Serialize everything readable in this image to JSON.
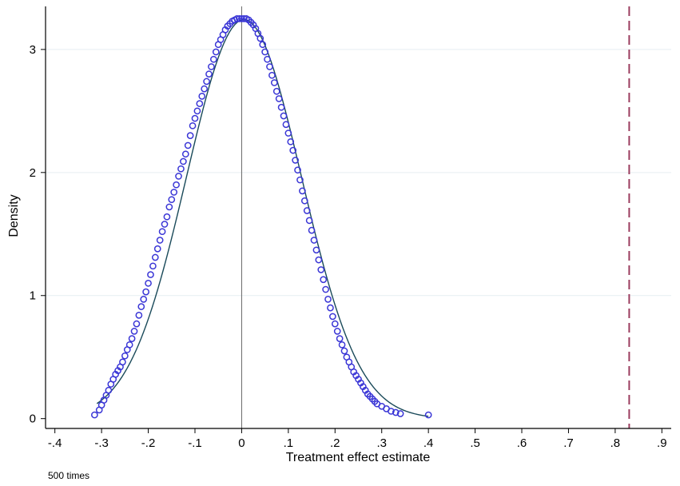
{
  "chart_data": {
    "type": "scatter",
    "title": "",
    "xlabel": "Treatment effect estimate",
    "ylabel": "Density",
    "note": "500 times",
    "xlim": [
      -0.42,
      0.92
    ],
    "ylim": [
      -0.08,
      3.35
    ],
    "x_ticks": [
      -0.4,
      -0.3,
      -0.2,
      -0.1,
      0,
      0.1,
      0.2,
      0.3,
      0.4,
      0.5,
      0.6,
      0.7,
      0.8,
      0.9
    ],
    "x_tick_labels": [
      "-.4",
      "-.3",
      "-.2",
      "-.1",
      "0",
      ".1",
      ".2",
      ".3",
      ".4",
      ".5",
      ".6",
      ".7",
      ".8",
      ".9"
    ],
    "y_ticks": [
      0,
      1,
      2,
      3
    ],
    "y_tick_labels": [
      "0",
      "1",
      "2",
      "3"
    ],
    "grid": "horizontal",
    "reference_lines": [
      {
        "x": 0,
        "style": "solid",
        "color": "#666666"
      },
      {
        "x": 0.83,
        "style": "dashed",
        "color": "#9b3d5f"
      }
    ],
    "normal_curve": {
      "mean": 0.005,
      "sd": 0.123,
      "x_range": [
        -0.31,
        0.4
      ],
      "color": "#1a4a5a"
    },
    "series": [
      {
        "marker": "hollow-circle",
        "color": "#3a36d6",
        "points": [
          [
            -0.315,
            0.03
          ],
          [
            -0.305,
            0.07
          ],
          [
            -0.3,
            0.11
          ],
          [
            -0.295,
            0.15
          ],
          [
            -0.29,
            0.19
          ],
          [
            -0.285,
            0.23
          ],
          [
            -0.28,
            0.28
          ],
          [
            -0.275,
            0.32
          ],
          [
            -0.27,
            0.36
          ],
          [
            -0.265,
            0.39
          ],
          [
            -0.26,
            0.42
          ],
          [
            -0.255,
            0.46
          ],
          [
            -0.25,
            0.51
          ],
          [
            -0.245,
            0.56
          ],
          [
            -0.24,
            0.6
          ],
          [
            -0.235,
            0.65
          ],
          [
            -0.23,
            0.71
          ],
          [
            -0.225,
            0.77
          ],
          [
            -0.22,
            0.84
          ],
          [
            -0.215,
            0.91
          ],
          [
            -0.21,
            0.97
          ],
          [
            -0.205,
            1.03
          ],
          [
            -0.2,
            1.1
          ],
          [
            -0.195,
            1.17
          ],
          [
            -0.19,
            1.24
          ],
          [
            -0.185,
            1.31
          ],
          [
            -0.18,
            1.38
          ],
          [
            -0.175,
            1.45
          ],
          [
            -0.17,
            1.52
          ],
          [
            -0.165,
            1.58
          ],
          [
            -0.16,
            1.64
          ],
          [
            -0.155,
            1.72
          ],
          [
            -0.15,
            1.78
          ],
          [
            -0.145,
            1.84
          ],
          [
            -0.14,
            1.9
          ],
          [
            -0.135,
            1.97
          ],
          [
            -0.13,
            2.03
          ],
          [
            -0.125,
            2.09
          ],
          [
            -0.12,
            2.15
          ],
          [
            -0.115,
            2.22
          ],
          [
            -0.11,
            2.3
          ],
          [
            -0.105,
            2.38
          ],
          [
            -0.1,
            2.44
          ],
          [
            -0.095,
            2.5
          ],
          [
            -0.09,
            2.56
          ],
          [
            -0.085,
            2.62
          ],
          [
            -0.08,
            2.68
          ],
          [
            -0.075,
            2.74
          ],
          [
            -0.07,
            2.8
          ],
          [
            -0.065,
            2.86
          ],
          [
            -0.06,
            2.92
          ],
          [
            -0.055,
            2.98
          ],
          [
            -0.05,
            3.04
          ],
          [
            -0.045,
            3.08
          ],
          [
            -0.04,
            3.12
          ],
          [
            -0.035,
            3.16
          ],
          [
            -0.03,
            3.19
          ],
          [
            -0.025,
            3.21
          ],
          [
            -0.02,
            3.23
          ],
          [
            -0.015,
            3.24
          ],
          [
            -0.01,
            3.25
          ],
          [
            -0.005,
            3.25
          ],
          [
            0.0,
            3.25
          ],
          [
            0.005,
            3.25
          ],
          [
            0.01,
            3.25
          ],
          [
            0.015,
            3.24
          ],
          [
            0.02,
            3.22
          ],
          [
            0.025,
            3.2
          ],
          [
            0.03,
            3.17
          ],
          [
            0.035,
            3.13
          ],
          [
            0.04,
            3.09
          ],
          [
            0.045,
            3.04
          ],
          [
            0.05,
            2.98
          ],
          [
            0.055,
            2.92
          ],
          [
            0.06,
            2.86
          ],
          [
            0.065,
            2.79
          ],
          [
            0.07,
            2.73
          ],
          [
            0.075,
            2.66
          ],
          [
            0.08,
            2.6
          ],
          [
            0.085,
            2.53
          ],
          [
            0.09,
            2.46
          ],
          [
            0.095,
            2.39
          ],
          [
            0.1,
            2.32
          ],
          [
            0.105,
            2.25
          ],
          [
            0.11,
            2.18
          ],
          [
            0.115,
            2.1
          ],
          [
            0.12,
            2.02
          ],
          [
            0.125,
            1.94
          ],
          [
            0.13,
            1.85
          ],
          [
            0.135,
            1.77
          ],
          [
            0.14,
            1.69
          ],
          [
            0.145,
            1.61
          ],
          [
            0.15,
            1.53
          ],
          [
            0.155,
            1.45
          ],
          [
            0.16,
            1.37
          ],
          [
            0.165,
            1.29
          ],
          [
            0.17,
            1.21
          ],
          [
            0.175,
            1.13
          ],
          [
            0.18,
            1.05
          ],
          [
            0.185,
            0.97
          ],
          [
            0.19,
            0.9
          ],
          [
            0.195,
            0.83
          ],
          [
            0.2,
            0.77
          ],
          [
            0.205,
            0.71
          ],
          [
            0.21,
            0.65
          ],
          [
            0.215,
            0.6
          ],
          [
            0.22,
            0.55
          ],
          [
            0.225,
            0.5
          ],
          [
            0.23,
            0.46
          ],
          [
            0.235,
            0.42
          ],
          [
            0.24,
            0.38
          ],
          [
            0.245,
            0.35
          ],
          [
            0.25,
            0.32
          ],
          [
            0.255,
            0.29
          ],
          [
            0.26,
            0.26
          ],
          [
            0.265,
            0.23
          ],
          [
            0.27,
            0.2
          ],
          [
            0.275,
            0.18
          ],
          [
            0.28,
            0.16
          ],
          [
            0.285,
            0.14
          ],
          [
            0.29,
            0.12
          ],
          [
            0.3,
            0.1
          ],
          [
            0.31,
            0.08
          ],
          [
            0.32,
            0.06
          ],
          [
            0.33,
            0.05
          ],
          [
            0.34,
            0.04
          ],
          [
            0.4,
            0.03
          ]
        ]
      }
    ]
  }
}
